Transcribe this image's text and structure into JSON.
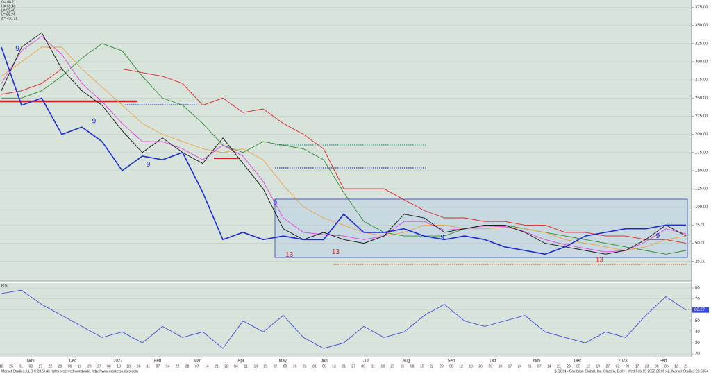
{
  "chart_data": [
    {
      "type": "line",
      "title": "$.COIN - Coinbase Global, Inc. Class A, Daily | Wed Feb 15 2023 20:05:42, Market Studies 23.6054",
      "ohlc_text": [
        "O= 60.21",
        "H= 69.46",
        "L= 59.46",
        "L= 69.34",
        "Δ= +10.31"
      ],
      "xlim": [
        0,
        34
      ],
      "ylim": [
        -2,
        385
      ],
      "yticks": [
        {
          "value": 375,
          "label": "375.00"
        },
        {
          "value": 350,
          "label": "350.00"
        },
        {
          "value": 325,
          "label": "325.00"
        },
        {
          "value": 300,
          "label": "300.00"
        },
        {
          "value": 275,
          "label": "275.00"
        },
        {
          "value": 250,
          "label": "250.00"
        },
        {
          "value": 225,
          "label": "225.00"
        },
        {
          "value": 200,
          "label": "200.00"
        },
        {
          "value": 175,
          "label": "175.00"
        },
        {
          "value": 150,
          "label": "150.00"
        },
        {
          "value": 125,
          "label": "125.00"
        },
        {
          "value": 100,
          "label": "100.00"
        },
        {
          "value": 75,
          "label": "75.00"
        },
        {
          "value": 50,
          "label": "50.00"
        },
        {
          "value": 25,
          "label": "25.00"
        }
      ],
      "grid": true,
      "series": [
        {
          "name": "Green",
          "color": "#2e8b2e",
          "values": [
            250,
            250,
            260,
            280,
            305,
            325,
            315,
            280,
            250,
            240,
            215,
            185,
            175,
            190,
            185,
            180,
            165,
            120,
            80,
            65,
            60,
            60,
            60,
            70,
            75,
            75,
            70,
            65,
            60,
            55,
            50,
            45,
            40,
            35,
            40
          ]
        },
        {
          "name": "Red",
          "color": "#e02020",
          "values": [
            255,
            260,
            270,
            290,
            290,
            290,
            290,
            285,
            280,
            270,
            240,
            250,
            230,
            235,
            215,
            200,
            180,
            125,
            125,
            125,
            110,
            95,
            85,
            85,
            80,
            80,
            75,
            75,
            65,
            65,
            60,
            60,
            55,
            55,
            50
          ]
        },
        {
          "name": "Orange",
          "color": "#f0a040",
          "values": [
            280,
            300,
            320,
            320,
            290,
            265,
            240,
            215,
            200,
            190,
            180,
            175,
            180,
            165,
            130,
            100,
            85,
            75,
            65,
            60,
            65,
            75,
            75,
            70,
            70,
            72,
            70,
            65,
            55,
            50,
            45,
            40,
            45,
            55,
            60
          ]
        },
        {
          "name": "Magenta",
          "color": "#e040e0",
          "values": [
            270,
            315,
            335,
            310,
            270,
            245,
            215,
            190,
            190,
            180,
            165,
            185,
            170,
            135,
            85,
            65,
            62,
            60,
            55,
            60,
            80,
            80,
            68,
            70,
            74,
            73,
            66,
            55,
            48,
            43,
            38,
            40,
            52,
            70,
            63
          ]
        },
        {
          "name": "Price",
          "color": "#111111",
          "values": [
            260,
            320,
            340,
            290,
            260,
            240,
            205,
            175,
            195,
            175,
            160,
            195,
            160,
            125,
            70,
            55,
            65,
            55,
            50,
            60,
            90,
            85,
            65,
            70,
            75,
            75,
            65,
            50,
            45,
            40,
            35,
            40,
            55,
            75,
            60
          ]
        },
        {
          "name": "Blue",
          "color": "#1a2ad8",
          "values": [
            320,
            240,
            250,
            200,
            210,
            190,
            150,
            170,
            165,
            175,
            120,
            55,
            65,
            55,
            60,
            55,
            55,
            90,
            65,
            65,
            70,
            60,
            55,
            60,
            55,
            45,
            40,
            35,
            45,
            60,
            65,
            70,
            70,
            75,
            75
          ]
        }
      ],
      "annotations": [
        {
          "text": "9",
          "x": 0.8,
          "y": 318,
          "color": "#1a2ad8"
        },
        {
          "text": "9",
          "x": 4.6,
          "y": 218,
          "color": "#1a2ad8"
        },
        {
          "text": "9",
          "x": 7.3,
          "y": 158,
          "color": "#1a2ad8"
        },
        {
          "text": "9",
          "x": 13.6,
          "y": 105,
          "color": "#1a2ad8"
        },
        {
          "text": "9",
          "x": 21.9,
          "y": 58,
          "color": "#1a2ad8"
        },
        {
          "text": "9",
          "x": 32.6,
          "y": 60,
          "color": "#1a2ad8"
        },
        {
          "text": "13",
          "x": 14.3,
          "y": 34,
          "color": "#e02020"
        },
        {
          "text": "13",
          "x": 16.6,
          "y": 38,
          "color": "#e02020"
        },
        {
          "text": "13",
          "x": 29.7,
          "y": 27,
          "color": "#e02020"
        }
      ],
      "month_labels": [
        {
          "value": 1.45,
          "label": "Nov"
        },
        {
          "value": 3.55,
          "label": "Dec"
        },
        {
          "value": 5.79,
          "label": "2022"
        },
        {
          "value": 7.76,
          "label": "Feb"
        },
        {
          "value": 9.72,
          "label": "Mar"
        },
        {
          "value": 11.9,
          "label": "Apr"
        },
        {
          "value": 13.97,
          "label": "May"
        },
        {
          "value": 16.03,
          "label": "Jun"
        },
        {
          "value": 18.1,
          "label": "Jul"
        },
        {
          "value": 20.1,
          "label": "Aug"
        },
        {
          "value": 22.34,
          "label": "Sep"
        },
        {
          "value": 24.41,
          "label": "Oct"
        },
        {
          "value": 26.59,
          "label": "Nov"
        },
        {
          "value": 28.62,
          "label": "Dec"
        },
        {
          "value": 30.86,
          "label": "2023"
        },
        {
          "value": 32.86,
          "label": "Feb"
        }
      ],
      "day_labels": [
        "18",
        "25",
        "01",
        "08",
        "15",
        "22",
        "29",
        "06",
        "13",
        "20",
        "27",
        "03",
        "10",
        "18",
        "24",
        "31",
        "07",
        "14",
        "22",
        "28",
        "07",
        "14",
        "21",
        "28",
        "04",
        "11",
        "18",
        "25",
        "02",
        "09",
        "16",
        "23",
        "31",
        "06",
        "13",
        "21",
        "27",
        "05",
        "11",
        "18",
        "25",
        "01",
        "08",
        "15",
        "22",
        "29",
        "06",
        "12",
        "19",
        "26",
        "03",
        "10",
        "17",
        "24",
        "31",
        "07",
        "14",
        "21",
        "28",
        "05",
        "12",
        "19",
        "27",
        "03",
        "09",
        "17",
        "23",
        "30",
        "06",
        "13",
        "21"
      ],
      "footer": "Market Studies, LLC © 2023 All rights reserved worldwide. http://www.marketstudies.com"
    },
    {
      "type": "line",
      "title": "RSI",
      "xlim": [
        0,
        34
      ],
      "ylim": [
        17.5,
        84.4
      ],
      "yticks": [
        80,
        70,
        60,
        50,
        40,
        30,
        20
      ],
      "grid": true,
      "series": [
        {
          "name": "RSI",
          "color": "#3a4ad8",
          "values": [
            75,
            78,
            65,
            55,
            45,
            35,
            40,
            30,
            45,
            35,
            40,
            25,
            50,
            40,
            55,
            35,
            25,
            30,
            45,
            35,
            40,
            55,
            65,
            50,
            45,
            50,
            55,
            40,
            35,
            30,
            40,
            35,
            55,
            72,
            60
          ],
          "value_labels": [
            null,
            null,
            null,
            null,
            null,
            null,
            null,
            null,
            null,
            null,
            null,
            null,
            null,
            null,
            null,
            null,
            null,
            null,
            null,
            null,
            null,
            null,
            null,
            null,
            null,
            null,
            null,
            null,
            null,
            null,
            null,
            null,
            null,
            null,
            "60.27"
          ]
        }
      ]
    }
  ]
}
